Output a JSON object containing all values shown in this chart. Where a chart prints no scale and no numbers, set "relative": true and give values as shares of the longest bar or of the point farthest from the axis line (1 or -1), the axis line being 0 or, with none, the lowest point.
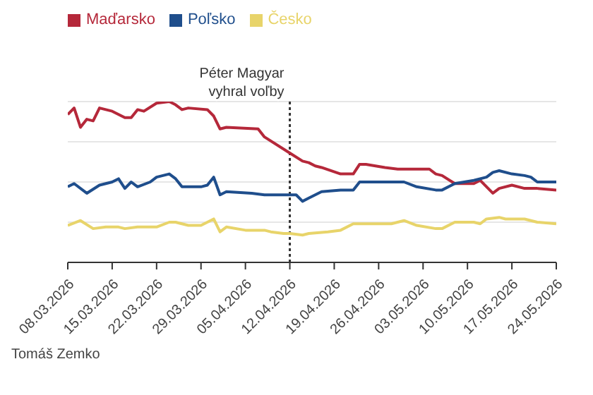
{
  "chart_data": {
    "type": "line",
    "relative": true,
    "legend": "top left",
    "grid": "y",
    "marker": "none",
    "xlim": [
      "2026-03-08",
      "2026-05-24"
    ],
    "xticks": [
      {
        "value": "2026-03-08",
        "label": "08.03.2026"
      },
      {
        "value": "2026-03-15",
        "label": "15.03.2026"
      },
      {
        "value": "2026-03-22",
        "label": "22.03.2026"
      },
      {
        "value": "2026-03-29",
        "label": "29.03.2026"
      },
      {
        "value": "2026-04-05",
        "label": "05.04.2026"
      },
      {
        "value": "2026-04-12",
        "label": "12.04.2026"
      },
      {
        "value": "2026-04-19",
        "label": "19.04.2026"
      },
      {
        "value": "2026-04-26",
        "label": "26.04.2026"
      },
      {
        "value": "2026-05-03",
        "label": "03.05.2026"
      },
      {
        "value": "2026-05-10",
        "label": "10.05.2026"
      },
      {
        "value": "2026-05-17",
        "label": "17.05.2026"
      },
      {
        "value": "2026-05-24",
        "label": "24.05.2026"
      }
    ],
    "ref_lines": [
      {
        "axis": "x",
        "value": "2026-04-12",
        "label": "Péter Magyar vyhral voľby",
        "color": "#333333",
        "line_style": "dotted"
      }
    ],
    "annotations": [
      "Tomáš Zemko"
    ],
    "series": [
      {
        "name": "Maďarsko",
        "color": "#b5283a",
        "x": [
          "2026-03-08",
          "2026-03-09",
          "2026-03-10",
          "2026-03-11",
          "2026-03-12",
          "2026-03-13",
          "2026-03-15",
          "2026-03-16",
          "2026-03-17",
          "2026-03-18",
          "2026-03-19",
          "2026-03-20",
          "2026-03-22",
          "2026-03-24",
          "2026-03-25",
          "2026-03-26",
          "2026-03-27",
          "2026-03-30",
          "2026-03-31",
          "2026-04-01",
          "2026-04-02",
          "2026-04-07",
          "2026-04-08",
          "2026-04-12",
          "2026-04-14",
          "2026-04-15",
          "2026-04-16",
          "2026-04-17",
          "2026-04-20",
          "2026-04-22",
          "2026-04-23",
          "2026-04-24",
          "2026-04-27",
          "2026-04-29",
          "2026-05-04",
          "2026-05-05",
          "2026-05-06",
          "2026-05-08",
          "2026-05-11",
          "2026-05-12",
          "2026-05-14",
          "2026-05-15",
          "2026-05-17",
          "2026-05-19",
          "2026-05-21",
          "2026-05-24"
        ],
        "values": [
          0.92,
          0.96,
          0.84,
          0.89,
          0.88,
          0.96,
          0.94,
          0.92,
          0.9,
          0.9,
          0.95,
          0.94,
          0.99,
          1,
          0.98,
          0.95,
          0.96,
          0.95,
          0.91,
          0.83,
          0.84,
          0.83,
          0.78,
          0.68,
          0.63,
          0.62,
          0.6,
          0.59,
          0.55,
          0.55,
          0.61,
          0.61,
          0.59,
          0.58,
          0.58,
          0.55,
          0.54,
          0.49,
          0.49,
          0.51,
          0.43,
          0.46,
          0.48,
          0.46,
          0.46,
          0.45
        ]
      },
      {
        "name": "Poľsko",
        "color": "#1f4e8c",
        "x": [
          "2026-03-08",
          "2026-03-09",
          "2026-03-11",
          "2026-03-13",
          "2026-03-15",
          "2026-03-16",
          "2026-03-17",
          "2026-03-18",
          "2026-03-19",
          "2026-03-21",
          "2026-03-22",
          "2026-03-24",
          "2026-03-25",
          "2026-03-26",
          "2026-03-29",
          "2026-03-30",
          "2026-03-31",
          "2026-04-01",
          "2026-04-02",
          "2026-04-06",
          "2026-04-08",
          "2026-04-11",
          "2026-04-12",
          "2026-04-13",
          "2026-04-14",
          "2026-04-15",
          "2026-04-17",
          "2026-04-20",
          "2026-04-22",
          "2026-04-23",
          "2026-04-28",
          "2026-04-30",
          "2026-05-02",
          "2026-05-05",
          "2026-05-06",
          "2026-05-08",
          "2026-05-11",
          "2026-05-13",
          "2026-05-14",
          "2026-05-15",
          "2026-05-17",
          "2026-05-19",
          "2026-05-20",
          "2026-05-21",
          "2026-05-24"
        ],
        "values": [
          0.47,
          0.49,
          0.43,
          0.48,
          0.5,
          0.52,
          0.46,
          0.5,
          0.47,
          0.5,
          0.53,
          0.55,
          0.52,
          0.47,
          0.47,
          0.48,
          0.53,
          0.42,
          0.44,
          0.43,
          0.42,
          0.42,
          0.42,
          0.42,
          0.38,
          0.4,
          0.44,
          0.45,
          0.45,
          0.5,
          0.5,
          0.5,
          0.47,
          0.45,
          0.45,
          0.49,
          0.51,
          0.53,
          0.56,
          0.57,
          0.55,
          0.54,
          0.53,
          0.5,
          0.5
        ]
      },
      {
        "name": "Česko",
        "color": "#e8d46a",
        "x": [
          "2026-03-08",
          "2026-03-10",
          "2026-03-12",
          "2026-03-14",
          "2026-03-16",
          "2026-03-17",
          "2026-03-19",
          "2026-03-22",
          "2026-03-24",
          "2026-03-25",
          "2026-03-27",
          "2026-03-29",
          "2026-03-31",
          "2026-04-01",
          "2026-04-02",
          "2026-04-05",
          "2026-04-08",
          "2026-04-09",
          "2026-04-11",
          "2026-04-12",
          "2026-04-14",
          "2026-04-15",
          "2026-04-18",
          "2026-04-20",
          "2026-04-22",
          "2026-04-24",
          "2026-04-28",
          "2026-04-30",
          "2026-05-02",
          "2026-05-05",
          "2026-05-06",
          "2026-05-08",
          "2026-05-11",
          "2026-05-12",
          "2026-05-13",
          "2026-05-15",
          "2026-05-16",
          "2026-05-19",
          "2026-05-21",
          "2026-05-24"
        ],
        "values": [
          0.23,
          0.26,
          0.21,
          0.22,
          0.22,
          0.21,
          0.22,
          0.22,
          0.25,
          0.25,
          0.23,
          0.23,
          0.27,
          0.19,
          0.22,
          0.2,
          0.2,
          0.19,
          0.18,
          0.18,
          0.17,
          0.18,
          0.19,
          0.2,
          0.24,
          0.24,
          0.24,
          0.26,
          0.23,
          0.21,
          0.21,
          0.25,
          0.25,
          0.24,
          0.27,
          0.28,
          0.27,
          0.27,
          0.25,
          0.24
        ]
      }
    ]
  }
}
